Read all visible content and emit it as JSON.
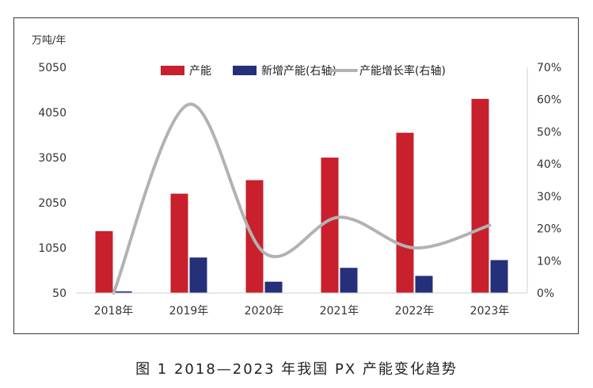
{
  "caption": "图 1  2018—2023 年我国 PX 产能变化趋势",
  "chart_data": {
    "type": "bar",
    "unit_label": "万吨/年",
    "categories": [
      "2018年",
      "2019年",
      "2020年",
      "2021年",
      "2022年",
      "2023年"
    ],
    "left_axis": {
      "min": 50,
      "max": 5050,
      "ticks": [
        50,
        1050,
        2050,
        3050,
        4050,
        5050
      ]
    },
    "right_axis": {
      "min": 0,
      "max": 70,
      "ticks": [
        "0%",
        "10%",
        "20%",
        "30%",
        "40%",
        "50%",
        "60%",
        "70%"
      ]
    },
    "series": [
      {
        "name": "产能",
        "axis": "left",
        "type": "bar",
        "color": "#c8202c",
        "values": [
          1420,
          2250,
          2550,
          3050,
          3600,
          4350
        ]
      },
      {
        "name": "新增产能(右轴)",
        "axis": "right",
        "type": "bar",
        "color": "#25307a",
        "values": [
          0.5,
          11,
          3.5,
          7.8,
          5.3,
          10.2
        ]
      },
      {
        "name": "产能增长率(右轴)",
        "axis": "right",
        "type": "line",
        "color": "#b2b2b2",
        "values": [
          0,
          58.5,
          12.5,
          23.5,
          14,
          21
        ]
      }
    ],
    "legend_position": "top",
    "grid": false
  }
}
